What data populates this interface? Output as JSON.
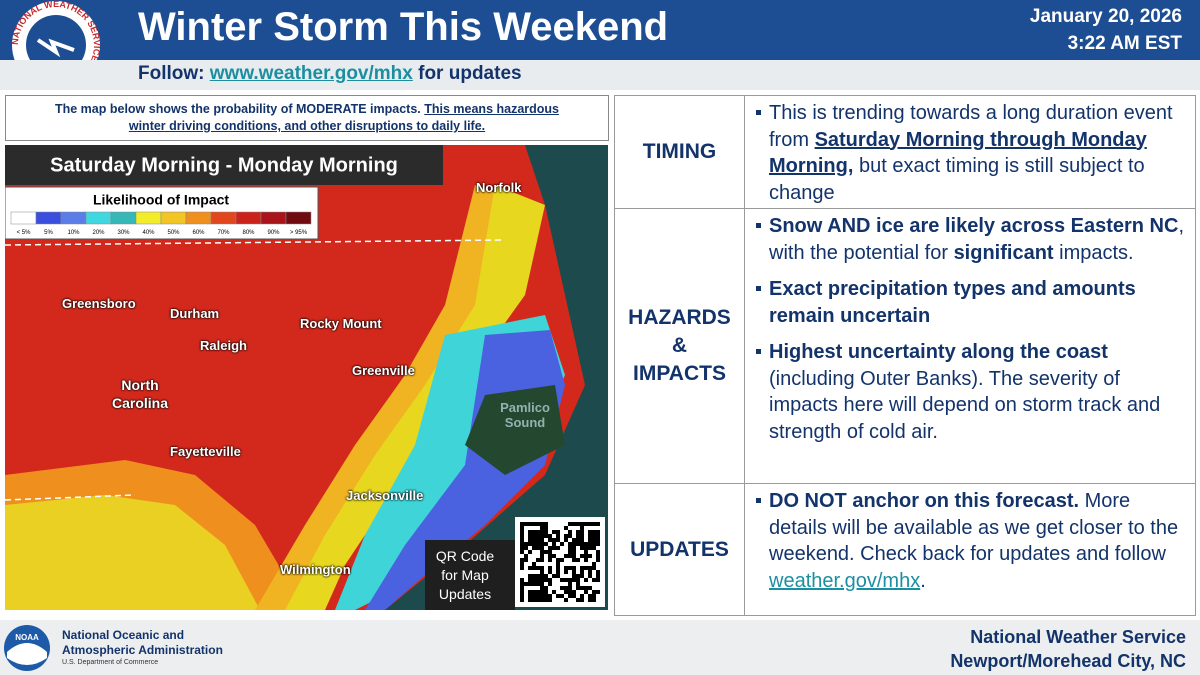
{
  "header": {
    "title": "Winter Storm This Weekend",
    "date": "January 20, 2026",
    "time": "3:22 AM EST",
    "follow_prefix": "Follow:",
    "follow_link": "www.weather.gov/mhx",
    "follow_suffix": "for updates",
    "logo_text": "NATIONAL WEATHER SERVICE"
  },
  "map": {
    "intro": "The map below shows the probability of MODERATE impacts.",
    "intro_emphasis": "This means hazardous winter driving conditions, and other disruptions to daily life.",
    "period": "Saturday Morning - Monday Morning",
    "legend_title": "Likelihood of Impact",
    "legend_labels": [
      "< 5%",
      "5%",
      "10%",
      "20%",
      "30%",
      "40%",
      "50%",
      "60%",
      "70%",
      "80%",
      "90%",
      "> 95%"
    ],
    "places": [
      "Norfolk",
      "Greensboro",
      "Durham",
      "Rocky Mount",
      "Raleigh",
      "Greenville",
      "North Carolina",
      "Fayetteville",
      "Pamlico Sound",
      "Jacksonville",
      "Wilmington"
    ],
    "qr_caption": "QR Code for Map Updates"
  },
  "table": {
    "rows": [
      {
        "label": [
          "TIMING"
        ],
        "bullets": [
          [
            "This is trending towards a long duration event from",
            "Saturday Morning through Monday Morning,",
            "but exact timing is still subject to change"
          ]
        ]
      },
      {
        "label": [
          "HAZARDS",
          "&",
          "IMPACTS"
        ],
        "bullets": [
          [
            "Snow AND ice are likely across Eastern NC",
            ", with the potential for",
            "significant",
            "impacts."
          ],
          [
            "Exact precipitation types and amounts remain uncertain"
          ],
          [
            "Highest uncertainty along the coast",
            "(including Outer Banks). The severity of impacts here will depend on storm track and strength of cold air."
          ]
        ]
      },
      {
        "label": [
          "UPDATES"
        ],
        "bullets": [
          [
            "DO NOT anchor on this forecast.",
            "More details will be available as we get closer to the weekend. Check back for updates and follow",
            "weather.gov/mhx",
            "."
          ]
        ]
      }
    ]
  },
  "footer": {
    "noaa_logo": "NOAA",
    "noaa_lines": [
      "National Oceanic and",
      "Atmospheric Administration",
      "U.S. Department of Commerce"
    ],
    "office_lines": [
      "National Weather Service",
      "Newport/Morehead City, NC"
    ]
  }
}
